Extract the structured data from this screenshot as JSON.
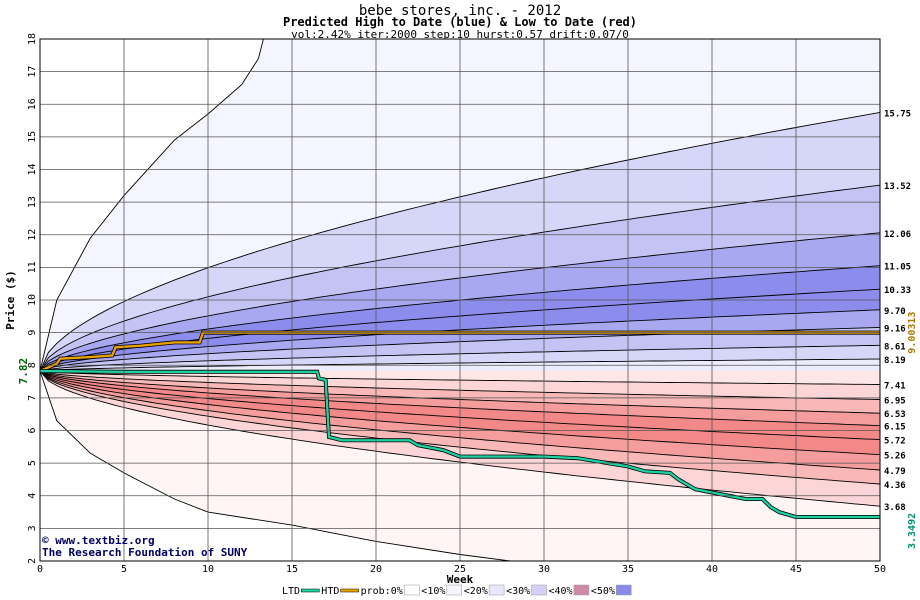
{
  "chart_data": {
    "type": "area",
    "title": "bebe stores, inc. - 2012",
    "subtitle": "Predicted High to Date (blue) &  Low to Date (red)",
    "params": "vol:2.42% iter:2000 step:10 hurst:0.57 drift:0.07/0",
    "xlabel": "Week",
    "ylabel": "Price ($)",
    "xlim": [
      0,
      50
    ],
    "ylim": [
      2,
      18
    ],
    "x_ticks": [
      0,
      5,
      10,
      15,
      20,
      25,
      30,
      35,
      40,
      45,
      50
    ],
    "y_ticks": [
      2,
      3,
      4,
      5,
      6,
      7,
      8,
      9,
      10,
      11,
      12,
      13,
      14,
      15,
      16,
      17,
      18
    ],
    "grid": true,
    "start_price": 7.82,
    "start_price_label": "7.82",
    "high_band_end_values": [
      15.75,
      13.52,
      12.06,
      11.05,
      10.33,
      9.7,
      9.16,
      8.61,
      8.19
    ],
    "low_band_end_values": [
      7.41,
      6.95,
      6.53,
      6.15,
      5.72,
      5.26,
      4.79,
      4.36,
      3.68
    ],
    "right_labels": [
      "15.75",
      "13.52",
      "12.06",
      "11.05",
      "10.33",
      "9.70",
      "9.16",
      "8.61",
      "8.19",
      "7.41",
      "6.95",
      "6.53",
      "6.15",
      "5.72",
      "5.26",
      "4.79",
      "4.36",
      "3.68"
    ],
    "outer_bounds": {
      "upper": [
        [
          0,
          7.82
        ],
        [
          1,
          10.0
        ],
        [
          3,
          11.9
        ],
        [
          5,
          13.2
        ],
        [
          8,
          14.9
        ],
        [
          10,
          15.7
        ],
        [
          12,
          16.6
        ],
        [
          13,
          17.4
        ],
        [
          13.3,
          18
        ]
      ],
      "lower": [
        [
          0,
          7.82
        ],
        [
          1,
          6.3
        ],
        [
          3,
          5.3
        ],
        [
          5,
          4.7
        ],
        [
          8,
          3.9
        ],
        [
          10,
          3.5
        ],
        [
          15,
          3.1
        ],
        [
          20,
          2.6
        ],
        [
          25,
          2.2
        ],
        [
          28,
          2.0
        ]
      ]
    },
    "series": [
      {
        "name": "HTD",
        "color": "#e8a200",
        "points": [
          [
            0,
            7.82
          ],
          [
            1,
            8.05
          ],
          [
            1.2,
            8.2
          ],
          [
            3,
            8.25
          ],
          [
            4.3,
            8.3
          ],
          [
            4.5,
            8.55
          ],
          [
            6,
            8.6
          ],
          [
            8,
            8.7
          ],
          [
            9.5,
            8.7
          ],
          [
            9.7,
            9.0
          ],
          [
            12,
            9.0
          ],
          [
            20,
            9.0
          ],
          [
            30,
            9.0
          ],
          [
            40,
            9.0
          ],
          [
            50,
            9.0
          ]
        ],
        "last_value_label": "9.00313"
      },
      {
        "name": "LTD",
        "color": "#20d0a0",
        "points": [
          [
            0,
            7.82
          ],
          [
            5,
            7.8
          ],
          [
            10,
            7.8
          ],
          [
            15,
            7.8
          ],
          [
            16.5,
            7.8
          ],
          [
            16.6,
            7.6
          ],
          [
            17,
            7.55
          ],
          [
            17.2,
            5.8
          ],
          [
            18,
            5.7
          ],
          [
            22,
            5.7
          ],
          [
            22.5,
            5.55
          ],
          [
            24,
            5.4
          ],
          [
            25,
            5.2
          ],
          [
            30,
            5.2
          ],
          [
            32,
            5.15
          ],
          [
            35,
            4.9
          ],
          [
            36,
            4.75
          ],
          [
            37.5,
            4.7
          ],
          [
            38,
            4.5
          ],
          [
            39,
            4.2
          ],
          [
            40,
            4.1
          ],
          [
            42,
            3.9
          ],
          [
            43,
            3.9
          ],
          [
            43.5,
            3.65
          ],
          [
            44,
            3.5
          ],
          [
            45,
            3.35
          ],
          [
            50,
            3.35
          ]
        ],
        "last_value_label": "3.3492"
      }
    ],
    "legend": {
      "placement": "bottom",
      "items": [
        {
          "label": "LTD",
          "color": "#20d0a0"
        },
        {
          "label": "HTD",
          "color": "#e8a200"
        },
        {
          "label": "prob:0%",
          "color": "#ffffff"
        },
        {
          "label": "<10%",
          "color": "#f5f5ff"
        },
        {
          "label": "<20%",
          "color": "#e6e6fc"
        },
        {
          "label": "<30%",
          "color": "#d6d0f4"
        },
        {
          "label": "<40%",
          "color": "#d08aa8"
        },
        {
          "label": "<50%",
          "color": "#8a8ae8"
        }
      ]
    },
    "watermark": {
      "line1": "www.textbiz.org",
      "line2": "The Research Foundation of SUNY",
      "symbol": "©"
    }
  }
}
